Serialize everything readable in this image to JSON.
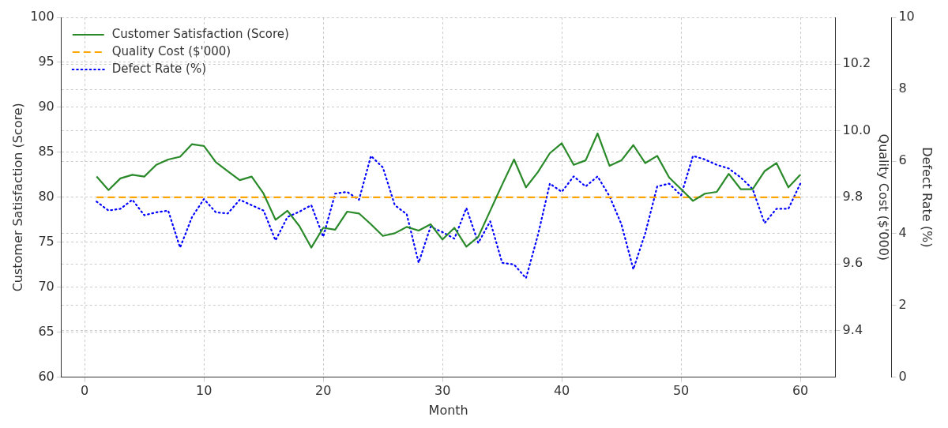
{
  "chart_data": {
    "type": "line",
    "xlabel": "Month",
    "ylabel": "Customer Satisfaction (Score)",
    "y2label": "Quality Cost ($'000)",
    "y3label": "Defect Rate (%)",
    "x": [
      1,
      2,
      3,
      4,
      5,
      6,
      7,
      8,
      9,
      10,
      11,
      12,
      13,
      14,
      15,
      16,
      17,
      18,
      19,
      20,
      21,
      22,
      23,
      24,
      25,
      26,
      27,
      28,
      29,
      30,
      31,
      32,
      33,
      34,
      35,
      36,
      37,
      38,
      39,
      40,
      41,
      42,
      43,
      44,
      45,
      46,
      47,
      48,
      49,
      50,
      51,
      52,
      53,
      54,
      55,
      56,
      57,
      58,
      59,
      60
    ],
    "xlim": [
      -1.95,
      62.95
    ],
    "xticks": [
      0,
      10,
      20,
      30,
      40,
      50,
      60
    ],
    "ylim": [
      60,
      100
    ],
    "yticks": [
      60,
      65,
      70,
      75,
      80,
      85,
      90,
      95,
      100
    ],
    "y2lim": [
      9.26,
      10.34
    ],
    "y2ticks": [
      9.4,
      9.6,
      9.8,
      {
        "value": 10,
        "label": "10.0"
      },
      10.2
    ],
    "y3lim": [
      0,
      10
    ],
    "y3ticks": [
      0,
      2,
      4,
      6,
      8,
      10
    ],
    "grid": true,
    "legend": "top left",
    "series": [
      {
        "name": "Customer Satisfaction (Score)",
        "color": "#2a8a2a",
        "line_style": "solid",
        "axis": "y",
        "values": [
          82.3,
          80.8,
          82.1,
          82.5,
          82.3,
          83.6,
          84.2,
          84.5,
          85.9,
          85.7,
          83.9,
          82.9,
          81.9,
          82.3,
          80.4,
          77.5,
          78.5,
          76.8,
          74.4,
          76.6,
          76.4,
          78.4,
          78.2,
          77.0,
          75.7,
          76.0,
          76.7,
          76.3,
          77.0,
          75.3,
          76.6,
          74.5,
          75.6,
          78.5,
          81.4,
          84.2,
          81.1,
          82.8,
          84.9,
          86.0,
          83.6,
          84.1,
          87.1,
          83.5,
          84.1,
          85.8,
          83.8,
          84.6,
          82.2,
          80.9,
          79.6,
          80.4,
          80.6,
          82.6,
          80.9,
          80.9,
          82.9,
          83.8,
          81.1,
          82.5
        ]
      },
      {
        "name": "Quality Cost ($'000)",
        "color": "#ffa500",
        "line_style": "dashed",
        "axis": "y2",
        "values": [
          9.8,
          9.8,
          9.8,
          9.8,
          9.8,
          9.8,
          9.8,
          9.8,
          9.8,
          9.8,
          9.8,
          9.8,
          9.8,
          9.8,
          9.8,
          9.8,
          9.8,
          9.8,
          9.8,
          9.8,
          9.8,
          9.8,
          9.8,
          9.8,
          9.8,
          9.8,
          9.8,
          9.8,
          9.8,
          9.8,
          9.8,
          9.8,
          9.8,
          9.8,
          9.8,
          9.8,
          9.8,
          9.8,
          9.8,
          9.8,
          9.8,
          9.8,
          9.8,
          9.8,
          9.8,
          9.8,
          9.8,
          9.8,
          9.8,
          9.8,
          9.8,
          9.8,
          9.8,
          9.8,
          9.8,
          9.8,
          9.8,
          9.8,
          9.8,
          9.8
        ]
      },
      {
        "name": "Defect Rate (%)",
        "color": "#0000ff",
        "line_style": "dotted",
        "axis": "y3",
        "values": [
          4.88,
          4.63,
          4.68,
          4.93,
          4.5,
          4.58,
          4.63,
          3.6,
          4.45,
          4.95,
          4.58,
          4.55,
          4.93,
          4.78,
          4.63,
          3.8,
          4.45,
          4.6,
          4.78,
          3.9,
          5.1,
          5.15,
          4.93,
          6.15,
          5.83,
          4.78,
          4.53,
          3.18,
          4.18,
          4.03,
          3.85,
          4.7,
          3.73,
          4.33,
          3.18,
          3.13,
          2.75,
          3.95,
          5.38,
          5.15,
          5.58,
          5.3,
          5.58,
          5.03,
          4.25,
          3.0,
          4.0,
          5.3,
          5.38,
          5.05,
          6.15,
          6.05,
          5.9,
          5.8,
          5.55,
          5.23,
          4.28,
          4.68,
          4.68,
          5.38
        ]
      }
    ]
  }
}
